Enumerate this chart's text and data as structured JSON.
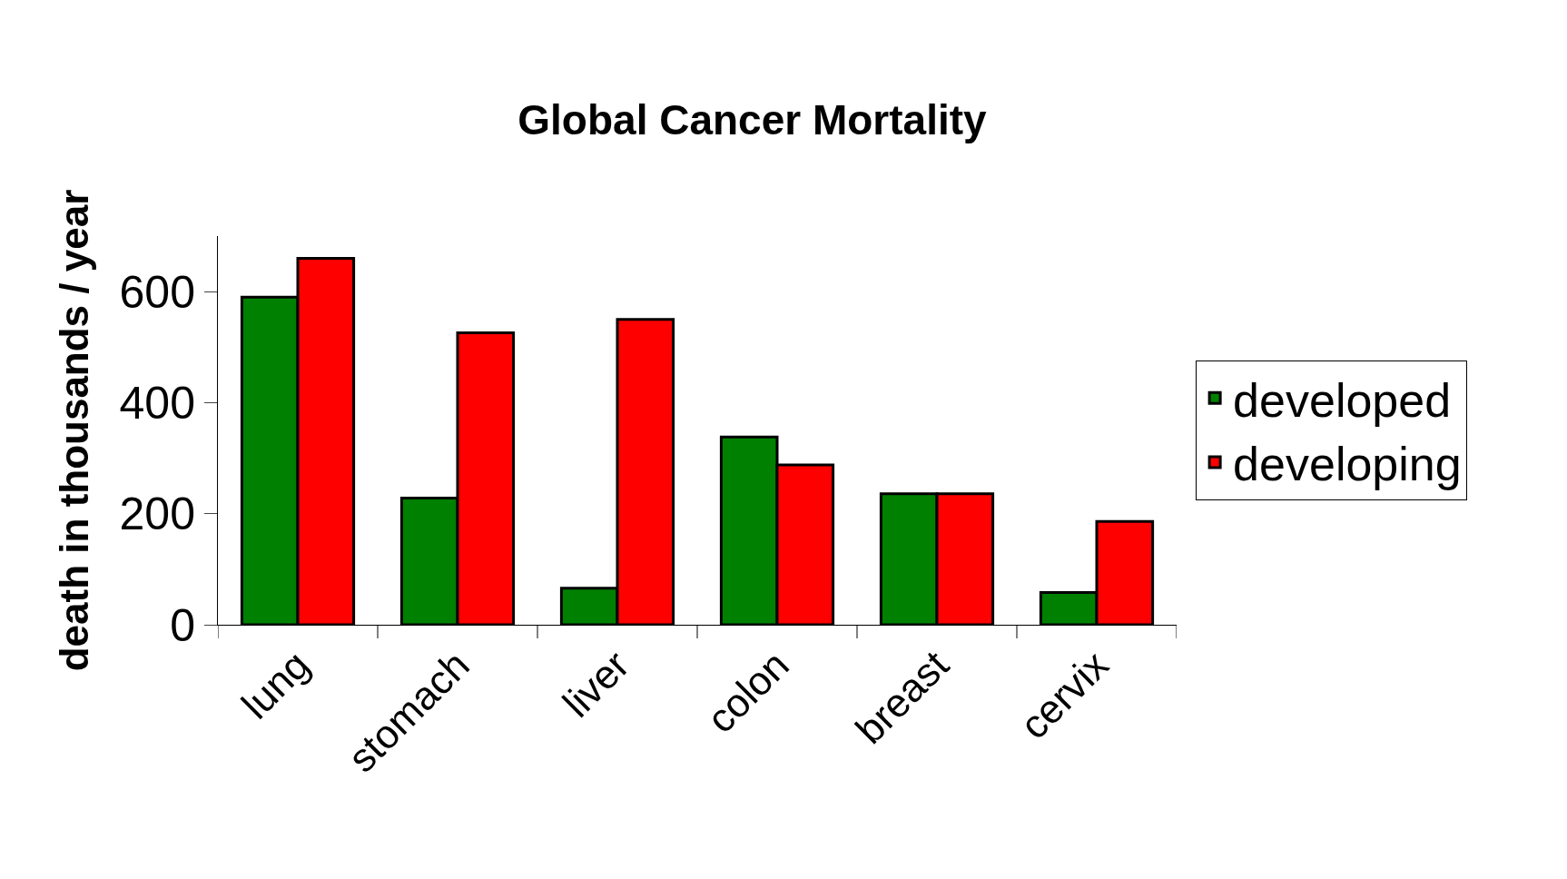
{
  "chart_data": {
    "type": "bar",
    "title": "Global Cancer Mortality",
    "ylabel": "death in thousands / year",
    "categories": [
      "lung",
      "stomach",
      "liver",
      "colon",
      "breast",
      "cervix"
    ],
    "series": [
      {
        "name": "developed",
        "color": "#008000",
        "values": [
          590,
          228,
          66,
          338,
          236,
          58
        ]
      },
      {
        "name": "developing",
        "color": "#ff0000",
        "values": [
          660,
          526,
          550,
          288,
          236,
          186
        ]
      }
    ],
    "ylim": [
      0,
      700
    ],
    "yticks": [
      0,
      200,
      400,
      600
    ],
    "legend": "right"
  }
}
